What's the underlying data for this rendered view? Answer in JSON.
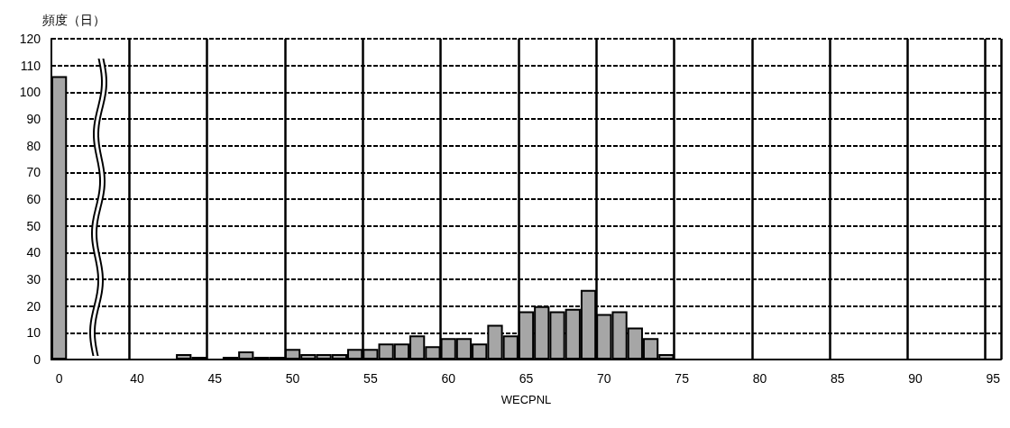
{
  "chart_data": {
    "type": "bar",
    "xlabel": "WECPNL",
    "ylabel": "頻度（日）",
    "categories": [
      "0",
      null,
      null,
      null,
      null,
      "40",
      null,
      null,
      null,
      null,
      "45",
      null,
      null,
      null,
      null,
      "50",
      null,
      null,
      null,
      null,
      "55",
      null,
      null,
      null,
      null,
      "60",
      null,
      null,
      null,
      null,
      "65",
      null,
      null,
      null,
      null,
      "70",
      null,
      null,
      null,
      null,
      "75",
      null,
      null,
      null,
      null,
      "80",
      null,
      null,
      null,
      null,
      "85",
      null,
      null,
      null,
      null,
      "90",
      null,
      null,
      null,
      null,
      "95"
    ],
    "values": [
      106,
      null,
      null,
      null,
      null,
      null,
      null,
      null,
      2,
      1,
      null,
      1,
      3,
      1,
      1,
      4,
      2,
      2,
      2,
      4,
      4,
      6,
      6,
      9,
      5,
      8,
      8,
      6,
      13,
      9,
      18,
      20,
      18,
      19,
      26,
      17,
      18,
      12,
      8,
      2,
      null,
      null,
      null,
      null,
      null,
      null,
      null,
      null,
      null,
      null,
      null,
      null,
      null,
      null,
      null,
      null,
      null,
      null,
      null,
      null,
      null
    ],
    "color": "#a6a6a6",
    "ylim": [
      0,
      120
    ],
    "yticks": [
      0,
      10,
      20,
      30,
      40,
      50,
      60,
      70,
      80,
      90,
      100,
      110,
      120
    ],
    "grid": true
  }
}
